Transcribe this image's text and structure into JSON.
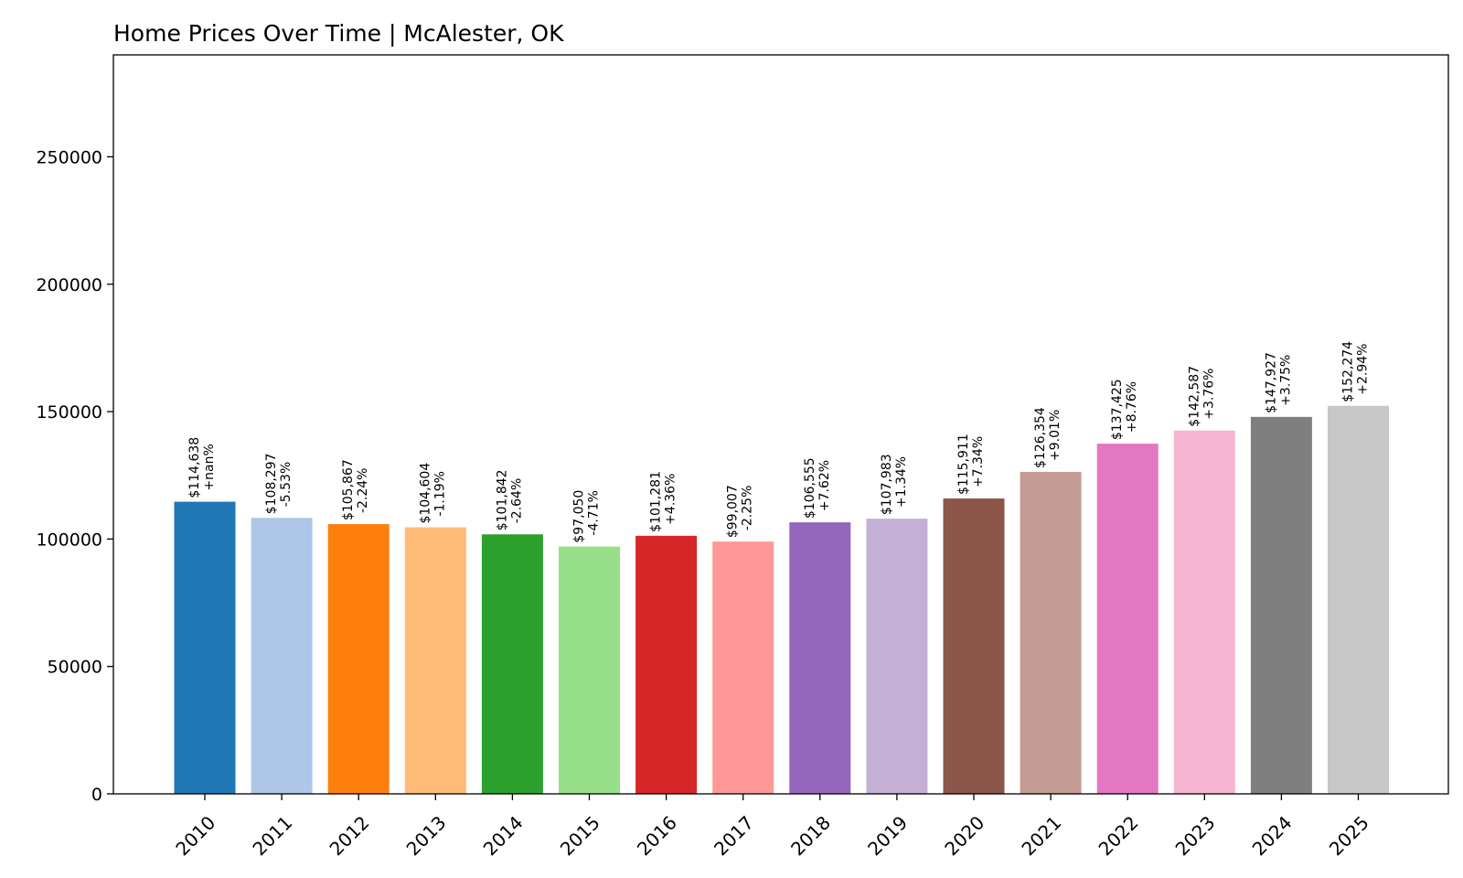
{
  "chart_data": {
    "type": "bar",
    "title": "Home Prices Over Time | McAlester, OK",
    "xlabel": "",
    "ylabel": "",
    "ylim": [
      0,
      290000
    ],
    "yticks": [
      0,
      50000,
      100000,
      150000,
      200000,
      250000
    ],
    "ytick_labels": [
      "0",
      "50000",
      "100000",
      "150000",
      "200000",
      "250000"
    ],
    "grid": false,
    "categories": [
      "2010",
      "2011",
      "2012",
      "2013",
      "2014",
      "2015",
      "2016",
      "2017",
      "2018",
      "2019",
      "2020",
      "2021",
      "2022",
      "2023",
      "2024",
      "2025"
    ],
    "values": [
      114638,
      108297,
      105867,
      104604,
      101842,
      97050,
      101281,
      99007,
      106555,
      107983,
      115911,
      126354,
      137425,
      142587,
      147927,
      152274
    ],
    "value_labels": [
      "$114,638",
      "$108,297",
      "$105,867",
      "$104,604",
      "$101,842",
      "$97,050",
      "$101,281",
      "$99,007",
      "$106,555",
      "$107,983",
      "$115,911",
      "$126,354",
      "$137,425",
      "$142,587",
      "$147,927",
      "$152,274"
    ],
    "change_labels": [
      "+nan%",
      "-5.53%",
      "-2.24%",
      "-1.19%",
      "-2.64%",
      "-4.71%",
      "+4.36%",
      "-2.25%",
      "+7.62%",
      "+1.34%",
      "+7.34%",
      "+9.01%",
      "+8.76%",
      "+3.76%",
      "+3.75%",
      "+2.94%"
    ],
    "colors": [
      "#1f77b4",
      "#aec7e8",
      "#ff7f0e",
      "#ffbb78",
      "#2ca02c",
      "#98df8a",
      "#d62728",
      "#ff9896",
      "#9467bd",
      "#c5b0d5",
      "#8c564b",
      "#c49c94",
      "#e377c2",
      "#f7b6d2",
      "#7f7f7f",
      "#c7c7c7"
    ]
  }
}
